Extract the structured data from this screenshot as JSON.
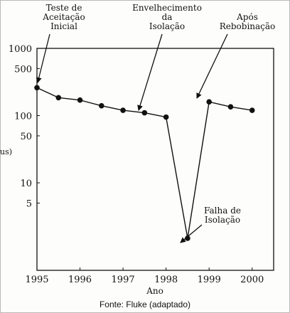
{
  "chart_data": {
    "type": "line",
    "x": [
      1995,
      1995.5,
      1996,
      1996.5,
      1997,
      1997.5,
      1998,
      1998.5,
      1999,
      1999.5,
      2000
    ],
    "series": [
      {
        "values": [
          260,
          185,
          170,
          140,
          120,
          110,
          95,
          1.5,
          160,
          135,
          120
        ]
      }
    ],
    "y_scale": "log",
    "ylim": [
      0.5,
      1000
    ],
    "xlim": [
      1995,
      2000.5
    ],
    "y_ticks": [
      {
        "value": 1000,
        "label": "1000"
      },
      {
        "value": 500,
        "label": "500"
      },
      {
        "value": 100,
        "label": "100"
      },
      {
        "value": 50,
        "label": "50"
      },
      {
        "value": 10,
        "label": "10"
      },
      {
        "value": 5,
        "label": "5"
      }
    ],
    "x_ticks": [
      "1995",
      "1996",
      "1997",
      "1998",
      "1999",
      "2000"
    ],
    "xlabel": "Ano",
    "ylabel_fragment": "us)",
    "grid": false,
    "annotations": [
      {
        "lines": [
          "Teste de",
          "Aceitação",
          "Inicial"
        ]
      },
      {
        "lines": [
          "Envelhecimento",
          "da",
          "Isolação"
        ]
      },
      {
        "lines": [
          "Após",
          "Rebobinação"
        ]
      },
      {
        "lines": [
          "Falha de",
          "Isolação"
        ]
      }
    ]
  },
  "caption": "Fonte: Fluke (adaptado)",
  "colors": {
    "ink": "#111111",
    "paper": "#fdfdfb"
  }
}
